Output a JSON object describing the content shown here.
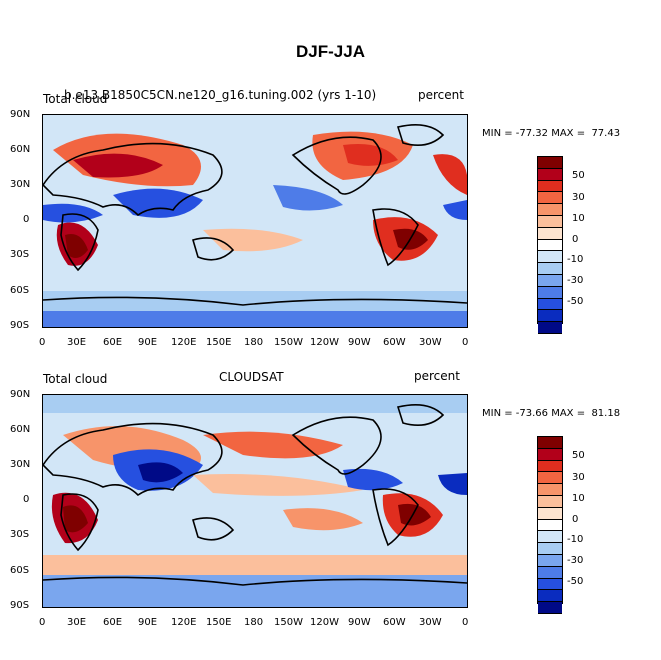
{
  "title": "DJF-JJA",
  "panels": [
    {
      "id": "top",
      "left_label": "Total cloud",
      "center_label": "b.e13.B1850C5CN.ne120_g16.tuning.002 (yrs 1-10)",
      "right_label": "percent",
      "stats": "MIN = -77.32 MAX =  77.43"
    },
    {
      "id": "bottom",
      "left_label": "Total cloud",
      "center_label": "CLOUDSAT",
      "right_label": "percent",
      "stats": "MIN = -73.66 MAX =  81.18"
    }
  ],
  "lat_ticks": [
    "90N",
    "60N",
    "30N",
    "0",
    "30S",
    "60S",
    "90S"
  ],
  "lon_ticks": [
    "0",
    "30E",
    "60E",
    "90E",
    "120E",
    "150E",
    "180",
    "150W",
    "120W",
    "90W",
    "60W",
    "30W",
    "0"
  ],
  "colorbar": {
    "labels": [
      "50",
      "30",
      "10",
      "0",
      "-10",
      "-30",
      "-50"
    ],
    "colors": [
      "#7f0000",
      "#b2001a",
      "#e02e1f",
      "#f26541",
      "#f7946a",
      "#fbbf9c",
      "#fde4d0",
      "#ffffff",
      "#d2e6f7",
      "#a8cdf2",
      "#7aa6ee",
      "#4e7ce8",
      "#2650e0",
      "#0a2cbf",
      "#000a87"
    ]
  }
}
